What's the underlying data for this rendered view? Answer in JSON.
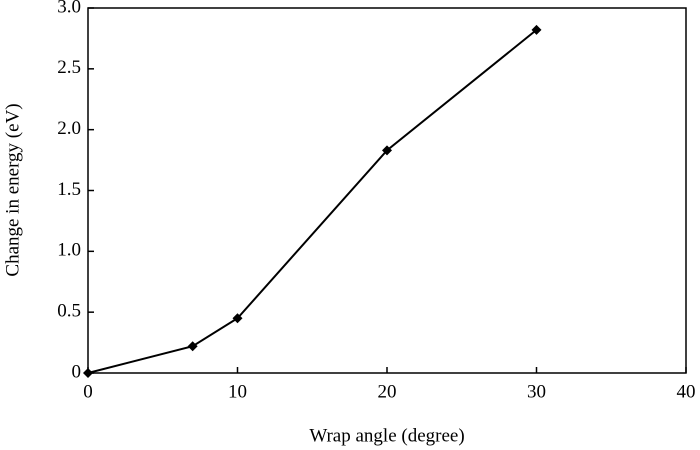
{
  "chart_data": {
    "type": "line",
    "xlabel": "Wrap angle (degree)",
    "ylabel": "Change in energy (eV)",
    "x": [
      0,
      7,
      10,
      20,
      30
    ],
    "values": [
      0,
      0.22,
      0.45,
      1.83,
      2.82
    ],
    "color": "#000000",
    "xlim": [
      0,
      40
    ],
    "xticks": [
      0,
      10,
      20,
      30,
      40
    ],
    "ylim": [
      0,
      3
    ],
    "yticks": [
      0,
      0.5,
      {
        "value": 1,
        "label": "1.0"
      },
      1.5,
      {
        "value": 2,
        "label": "2.0"
      },
      2.5,
      {
        "value": 3,
        "label": "3.0"
      }
    ]
  }
}
